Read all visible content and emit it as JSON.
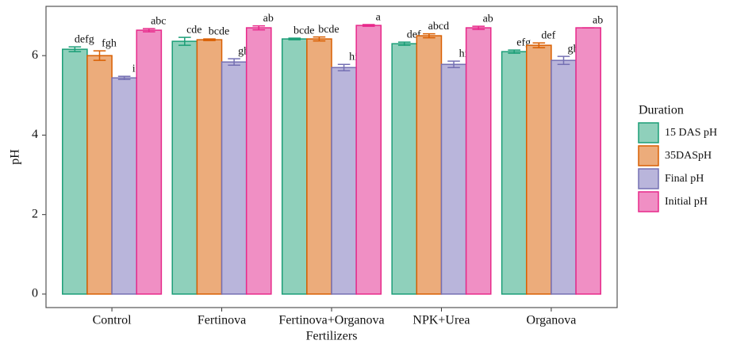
{
  "chart_data": {
    "type": "bar",
    "x_label": "Fertilizers",
    "y_label": "pH",
    "categories": [
      "Control",
      "Fertinova",
      "Fertinova+Organova",
      "NPK+Urea",
      "Organova"
    ],
    "legend_title": "Duration",
    "legend": "right",
    "ylim": [
      -0.34,
      7.24
    ],
    "yticks": [
      0,
      2,
      4,
      6
    ],
    "series": [
      {
        "name": "15 DAS pH",
        "color": "#8fd0bb",
        "edge": "#1b9e77",
        "values": [
          6.16,
          6.36,
          6.42,
          6.3,
          6.1
        ],
        "errors": [
          0.06,
          0.1,
          0.02,
          0.04,
          0.04
        ],
        "letters": [
          "defg",
          "cde",
          "bcde",
          "def",
          "efg"
        ]
      },
      {
        "name": "35DASpH",
        "color": "#ecac7b",
        "edge": "#d95f02",
        "values": [
          6.0,
          6.4,
          6.42,
          6.5,
          6.26
        ],
        "errors": [
          0.12,
          0.02,
          0.05,
          0.05,
          0.06
        ],
        "letters": [
          "fgh",
          "bcde",
          "bcde",
          "abcd",
          "def"
        ]
      },
      {
        "name": "Final pH",
        "color": "#b9b5db",
        "edge": "#7570b3",
        "values": [
          5.44,
          5.84,
          5.7,
          5.78,
          5.88
        ],
        "errors": [
          0.04,
          0.08,
          0.08,
          0.08,
          0.1
        ],
        "letters": [
          "i",
          "gh",
          "hi",
          "hi",
          "gh"
        ]
      },
      {
        "name": "Initial pH",
        "color": "#f08fc4",
        "edge": "#e7298a",
        "values": [
          6.64,
          6.7,
          6.76,
          6.7,
          6.7
        ],
        "errors": [
          0.04,
          0.05,
          0.02,
          0.04,
          0.0
        ],
        "letters": [
          "abc",
          "ab",
          "a",
          "ab",
          "ab"
        ]
      }
    ]
  }
}
